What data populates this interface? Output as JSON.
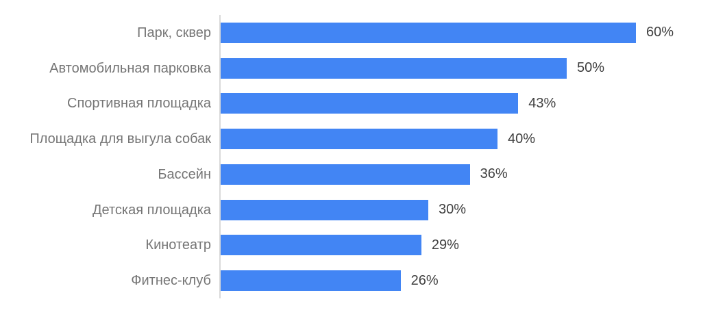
{
  "chart_data": {
    "type": "bar",
    "orientation": "horizontal",
    "title": "",
    "xlabel": "",
    "ylabel": "",
    "unit": "%",
    "xlim": [
      0,
      70
    ],
    "grid": false,
    "legend": false,
    "categories": [
      "Парк, сквер",
      "Автомобильная парковка",
      "Спортивная площадка",
      "Площадка для выгула собак",
      "Бассейн",
      "Детская площадка",
      "Кинотеатр",
      "Фитнес-клуб"
    ],
    "values": [
      60,
      50,
      43,
      40,
      36,
      30,
      29,
      26
    ],
    "value_labels": [
      "60%",
      "50%",
      "43%",
      "40%",
      "36%",
      "30%",
      "29%",
      "26%"
    ]
  },
  "colors": {
    "bar": "#4285F4",
    "category_label": "#757575",
    "value_label": "#404040",
    "axis_line": "#d9d9d9",
    "background": "#ffffff"
  }
}
